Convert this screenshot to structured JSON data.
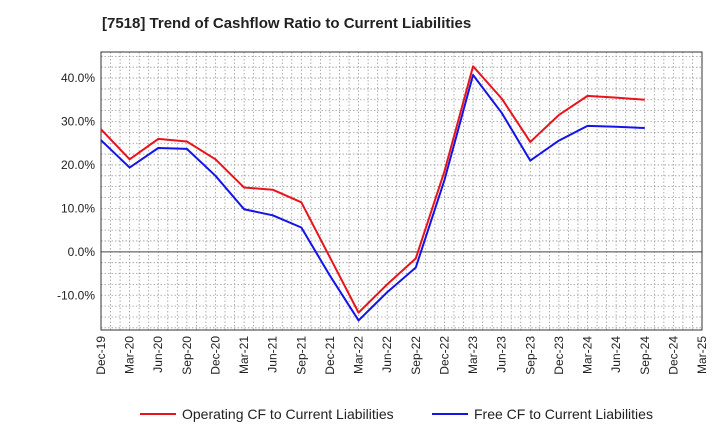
{
  "chart_data": {
    "type": "line",
    "title": "[7518]  Trend of Cashflow Ratio to Current Liabilities",
    "xlabel": "",
    "ylabel": "",
    "x": [
      "Dec-19",
      "Mar-20",
      "Jun-20",
      "Sep-20",
      "Dec-20",
      "Mar-21",
      "Jun-21",
      "Sep-21",
      "Dec-21",
      "Mar-22",
      "Jun-22",
      "Sep-22",
      "Dec-22",
      "Mar-23",
      "Jun-23",
      "Sep-23",
      "Dec-23",
      "Mar-24",
      "Jun-24",
      "Sep-24",
      "Dec-24",
      "Mar-25"
    ],
    "x_tick_labels": [
      "Dec-19",
      "Mar-20",
      "Jun-20",
      "Sep-20",
      "Dec-20",
      "Mar-21",
      "Jun-21",
      "Sep-21",
      "Dec-21",
      "Mar-22",
      "Jun-22",
      "Sep-22",
      "Dec-22",
      "Mar-23",
      "Jun-23",
      "Sep-23",
      "Dec-23",
      "Mar-24",
      "Jun-24",
      "Sep-24",
      "Dec-24",
      "Mar-25"
    ],
    "ylim": [
      -18,
      46
    ],
    "y_ticks": [
      -10,
      0,
      10,
      20,
      30,
      40
    ],
    "y_tick_labels": [
      "-10.0%",
      "0.0%",
      "10.0%",
      "20.0%",
      "30.0%",
      "40.0%"
    ],
    "grid": true,
    "legend_position": "bottom",
    "series": [
      {
        "name": "Operating CF to Current Liabilities",
        "color": "#e8141c",
        "values": [
          28.2,
          21.3,
          26.0,
          25.4,
          21.3,
          14.8,
          14.3,
          11.4,
          -1.3,
          -14.0,
          -7.5,
          -1.5,
          18.5,
          42.7,
          35.3,
          25.3,
          31.5,
          35.9,
          35.5,
          35.0,
          null,
          null
        ]
      },
      {
        "name": "Free CF to Current Liabilities",
        "color": "#1414e6",
        "values": [
          25.7,
          19.4,
          23.9,
          23.7,
          17.5,
          9.8,
          8.4,
          5.6,
          -5.5,
          -15.8,
          -9.3,
          -3.6,
          16.5,
          40.7,
          32.0,
          21.0,
          25.6,
          29.0,
          28.8,
          28.5,
          null,
          null
        ]
      }
    ]
  }
}
